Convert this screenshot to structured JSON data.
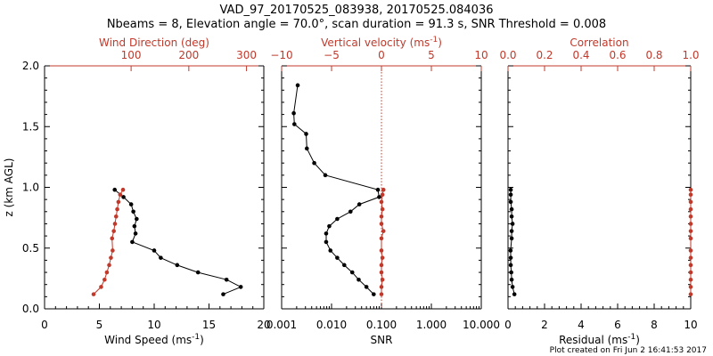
{
  "title": {
    "line1": "VAD_97_20170525_083938, 20170525.084036",
    "line2": "Nbeams = 8, Elevation angle = 70.0°, scan duration = 91.3 s, SNR Threshold = 0.008"
  },
  "footer": "Plot created on Fri Jun  2 16:41:53 2017",
  "colors": {
    "black": "#000000",
    "red": "#c0392b"
  },
  "chart_data": [
    {
      "panel": "wind",
      "type": "line",
      "ylabel": "z (km AGL)",
      "ylim": [
        0,
        2
      ],
      "yticks": [
        "0.0",
        "0.5",
        "1.0",
        "1.5",
        "2.0"
      ],
      "bottom_axis": {
        "label": "Wind Speed (ms",
        "label_sup": "-1",
        "label_end": ")",
        "range": [
          0,
          20
        ],
        "ticks": [
          "0",
          "5",
          "10",
          "15",
          "20"
        ]
      },
      "top_axis": {
        "label": "Wind Direction (deg)",
        "range": [
          -50,
          330
        ],
        "ticks": [
          "100",
          "200",
          "300"
        ],
        "tick_values": [
          100,
          200,
          300
        ]
      },
      "series": [
        {
          "name": "Wind Speed",
          "axis": "bottom",
          "color": "black",
          "z": [
            0.12,
            0.18,
            0.24,
            0.3,
            0.36,
            0.42,
            0.48,
            0.55,
            0.62,
            0.68,
            0.74,
            0.8,
            0.86,
            0.92,
            0.98
          ],
          "x": [
            16.3,
            17.9,
            16.6,
            14.0,
            12.1,
            10.6,
            10.0,
            8.0,
            8.3,
            8.2,
            8.4,
            8.1,
            7.9,
            7.2,
            6.4
          ]
        },
        {
          "name": "Wind Direction",
          "axis": "top",
          "color": "red",
          "z": [
            0.12,
            0.18,
            0.24,
            0.3,
            0.36,
            0.42,
            0.48,
            0.58,
            0.64,
            0.7,
            0.76,
            0.82,
            0.88,
            0.94,
            0.98
          ],
          "x": [
            35,
            48,
            54,
            58,
            62,
            65,
            68,
            67,
            70,
            72,
            74,
            76,
            78,
            81,
            86
          ]
        }
      ]
    },
    {
      "panel": "snr",
      "type": "line",
      "ylim": [
        0,
        2
      ],
      "bottom_axis": {
        "label": "SNR",
        "scale": "log",
        "range": [
          0.001,
          10
        ],
        "ticks": [
          "0.001",
          "0.010",
          "0.100",
          "1.000",
          "10.000"
        ]
      },
      "top_axis": {
        "label": "Vertical velocity (ms",
        "label_sup": "-1",
        "label_end": ")",
        "range": [
          -10,
          10
        ],
        "ticks": [
          "−10",
          "−5",
          "0",
          "5",
          "10"
        ],
        "tick_values": [
          -10,
          -5,
          0,
          5,
          10
        ]
      },
      "zero_line": 0,
      "series": [
        {
          "name": "SNR",
          "axis": "bottom",
          "color": "black",
          "z": [
            0.12,
            0.18,
            0.24,
            0.3,
            0.36,
            0.42,
            0.48,
            0.55,
            0.62,
            0.68,
            0.74,
            0.8,
            0.86,
            0.92,
            0.98,
            1.1,
            1.2,
            1.32,
            1.44,
            1.52,
            1.61,
            1.84
          ],
          "x": [
            0.07,
            0.05,
            0.035,
            0.026,
            0.018,
            0.013,
            0.0095,
            0.0078,
            0.0078,
            0.009,
            0.013,
            0.024,
            0.036,
            0.09,
            0.085,
            0.0075,
            0.0045,
            0.0032,
            0.0031,
            0.0018,
            0.00175,
            0.0021
          ]
        },
        {
          "name": "Vertical velocity",
          "axis": "top",
          "color": "red",
          "z": [
            0.12,
            0.18,
            0.24,
            0.3,
            0.36,
            0.42,
            0.48,
            0.58,
            0.64,
            0.7,
            0.76,
            0.82,
            0.88,
            0.94,
            0.98
          ],
          "x": [
            0.0,
            0.0,
            0.1,
            0.0,
            0.0,
            0.1,
            0.0,
            0.0,
            0.2,
            0.0,
            0.0,
            0.1,
            0.0,
            0.1,
            0.2
          ]
        }
      ]
    },
    {
      "panel": "corr",
      "type": "line",
      "ylim": [
        0,
        2
      ],
      "bottom_axis": {
        "label": "Residual (ms",
        "label_sup": "-1",
        "label_end": ")",
        "range": [
          0,
          10
        ],
        "ticks": [
          "0",
          "2",
          "4",
          "6",
          "8",
          "10"
        ]
      },
      "top_axis": {
        "label": "Correlation",
        "range": [
          0,
          1
        ],
        "ticks": [
          "0.0",
          "0.2",
          "0.4",
          "0.6",
          "0.8",
          "1.0"
        ],
        "tick_values": [
          0,
          0.2,
          0.4,
          0.6,
          0.8,
          1.0
        ]
      },
      "series": [
        {
          "name": "Residual",
          "axis": "bottom",
          "color": "black",
          "z": [
            0.12,
            0.18,
            0.24,
            0.3,
            0.36,
            0.42,
            0.48,
            0.58,
            0.64,
            0.7,
            0.76,
            0.82,
            0.88,
            0.94,
            0.98
          ],
          "x": [
            0.35,
            0.25,
            0.2,
            0.18,
            0.15,
            0.15,
            0.14,
            0.2,
            0.2,
            0.25,
            0.2,
            0.2,
            0.15,
            0.15,
            0.15
          ]
        },
        {
          "name": "Correlation",
          "axis": "top",
          "color": "red",
          "z": [
            0.12,
            0.18,
            0.24,
            0.3,
            0.36,
            0.42,
            0.48,
            0.58,
            0.64,
            0.7,
            0.76,
            0.82,
            0.88,
            0.94,
            0.98
          ],
          "x": [
            1.0,
            1.0,
            1.0,
            1.0,
            1.0,
            1.0,
            1.0,
            1.0,
            1.0,
            1.0,
            1.0,
            1.0,
            1.0,
            1.0,
            1.0
          ]
        }
      ]
    }
  ]
}
